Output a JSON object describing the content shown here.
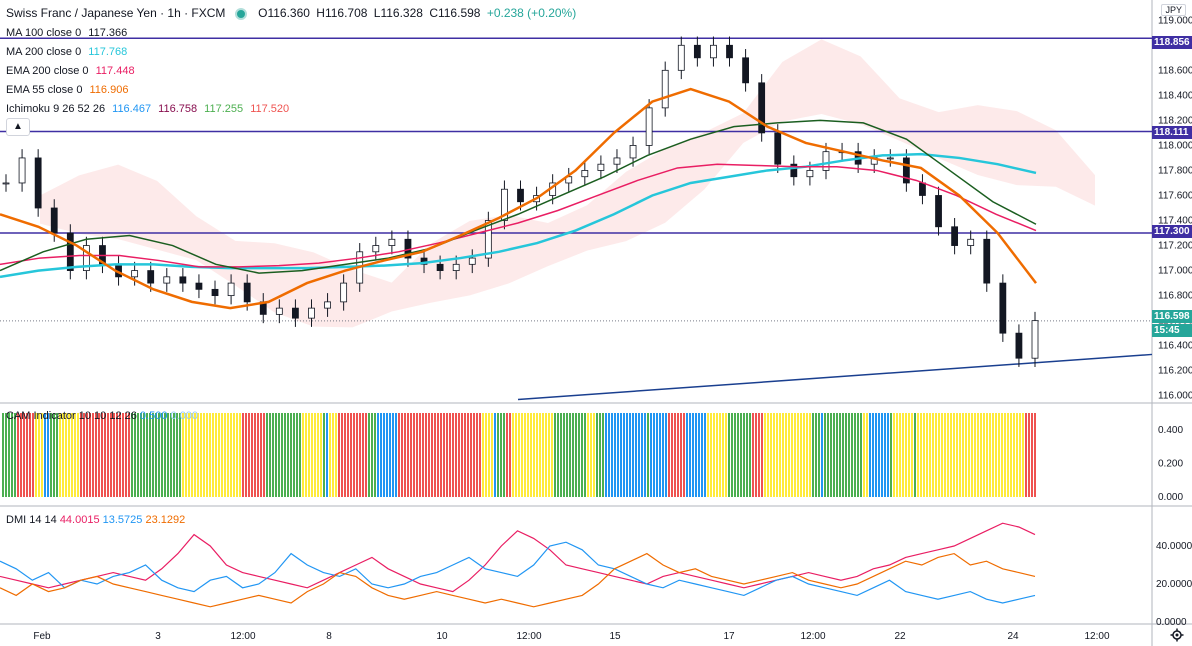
{
  "symbol": {
    "title": "Swiss Franc / Japanese Yen · 1h · FXCM",
    "ohlc": {
      "o": "O116.360",
      "h": "H116.708",
      "l": "L116.328",
      "c": "C116.598",
      "chg": "+0.238 (+0.20%)"
    }
  },
  "indicators": {
    "ma100": {
      "label": "MA 100 close 0",
      "value": "117.366",
      "color": "#131722"
    },
    "ma200": {
      "label": "MA 200 close 0",
      "value": "117.768",
      "color": "#26c6da"
    },
    "ema200": {
      "label": "EMA 200 close 0",
      "value": "117.448",
      "color": "#e91e63"
    },
    "ema55": {
      "label": "EMA 55 close 0",
      "value": "116.906",
      "color": "#ef6c00"
    },
    "ichimoku": {
      "label": "Ichimoku 9 26 52 26",
      "values": [
        "116.467",
        "116.758",
        "117.255",
        "117.520"
      ],
      "colors": [
        "#2196f3",
        "#880e4f",
        "#4caf50",
        "#ef5350"
      ]
    }
  },
  "currency_unit": "JPY",
  "price_tags": {
    "h1": "118.856",
    "h2": "118.111",
    "h3": "117.300",
    "last": "116.598",
    "countdown": "15:45"
  },
  "cam": {
    "label": "CAM Indicator 10 10 12 26",
    "v1": "0.500",
    "v2": "0.000"
  },
  "dmi": {
    "label": "DMI 14 14",
    "v1": "44.0015",
    "v2": "13.5725",
    "v3": "23.1292"
  },
  "chart_data": {
    "type": "line",
    "title": "Swiss Franc / Japanese Yen · 1h · FXCM",
    "price_axis": {
      "ticks": [
        "119.000",
        "118.800",
        "118.600",
        "118.400",
        "118.200",
        "118.000",
        "117.800",
        "117.600",
        "117.400",
        "117.200",
        "117.000",
        "116.800",
        "116.600",
        "116.400",
        "116.200",
        "116.000"
      ],
      "ylim": [
        115.95,
        119.05
      ]
    },
    "cam_axis": {
      "ticks": [
        "0.400",
        "0.200",
        "0.000"
      ]
    },
    "dmi_axis": {
      "ticks": [
        "40.0000",
        "20.0000",
        "0.0000"
      ]
    },
    "time_labels": [
      "Feb",
      "3",
      "12:00",
      "8",
      "10",
      "12:00",
      "15",
      "17",
      "12:00",
      "22",
      "24",
      "12:00"
    ],
    "horizontal_levels": [
      118.856,
      118.111,
      117.3
    ],
    "last_price": 116.598,
    "trendline": {
      "from": [
        -1,
        115.97
      ],
      "to": [
        1,
        116.33
      ]
    },
    "close_series": [
      117.7,
      117.9,
      117.5,
      117.3,
      117.0,
      117.2,
      117.05,
      116.95,
      117.0,
      116.9,
      116.95,
      116.9,
      116.85,
      116.8,
      116.9,
      116.75,
      116.65,
      116.7,
      116.62,
      116.7,
      116.75,
      116.9,
      117.15,
      117.2,
      117.25,
      117.1,
      117.05,
      117.0,
      117.05,
      117.1,
      117.4,
      117.65,
      117.55,
      117.6,
      117.7,
      117.75,
      117.8,
      117.85,
      117.9,
      118.0,
      118.3,
      118.6,
      118.8,
      118.7,
      118.8,
      118.7,
      118.5,
      118.1,
      117.85,
      117.75,
      117.8,
      117.95,
      117.95,
      117.85,
      117.9,
      117.9,
      117.7,
      117.6,
      117.35,
      117.2,
      117.25,
      116.9,
      116.5,
      116.3,
      116.6
    ],
    "ma200_series": [
      116.95,
      117.0,
      117.03,
      117.05,
      117.05,
      117.03,
      117.02,
      117.02,
      117.02,
      117.03,
      117.04,
      117.06,
      117.1,
      117.15,
      117.22,
      117.32,
      117.45,
      117.6,
      117.7,
      117.75,
      117.8,
      117.83,
      117.88,
      117.92,
      117.93,
      117.9,
      117.85,
      117.78
    ],
    "ema200_series": [
      117.05,
      117.1,
      117.12,
      117.12,
      117.08,
      117.03,
      117.03,
      117.04,
      117.06,
      117.1,
      117.15,
      117.22,
      117.3,
      117.38,
      117.48,
      117.6,
      117.72,
      117.82,
      117.85,
      117.84,
      117.83,
      117.83,
      117.8,
      117.72,
      117.6,
      117.45,
      117.32
    ],
    "ma100_series": [
      117.0,
      117.15,
      117.25,
      117.28,
      117.2,
      117.05,
      116.98,
      117.0,
      117.05,
      117.1,
      117.18,
      117.32,
      117.45,
      117.6,
      117.75,
      117.92,
      118.05,
      118.15,
      118.18,
      118.2,
      118.18,
      118.05,
      117.8,
      117.55,
      117.37
    ],
    "ema55_series": [
      117.45,
      117.35,
      117.2,
      117.0,
      116.85,
      116.75,
      116.7,
      116.75,
      116.9,
      117.0,
      117.08,
      117.15,
      117.28,
      117.42,
      117.58,
      117.8,
      118.1,
      118.35,
      118.45,
      118.35,
      118.15,
      118.02,
      117.95,
      117.88,
      117.82,
      117.6,
      117.3,
      116.9
    ],
    "dmi_series": {
      "plus": [
        32,
        28,
        22,
        26,
        18,
        22,
        20,
        24,
        26,
        30,
        22,
        18,
        16,
        22,
        24,
        18,
        20,
        26,
        36,
        30,
        26,
        24,
        28,
        20,
        18,
        20,
        24,
        26,
        30,
        34,
        28,
        26,
        24,
        30,
        40,
        42,
        38,
        30,
        28,
        24,
        20,
        18,
        22,
        20,
        18,
        16,
        14,
        18,
        22,
        24,
        20,
        18,
        16,
        14,
        18,
        22,
        16,
        14,
        12,
        14,
        16,
        12,
        10,
        12,
        14
      ],
      "minus": [
        18,
        14,
        20,
        16,
        18,
        22,
        24,
        20,
        18,
        16,
        14,
        12,
        10,
        8,
        10,
        12,
        14,
        12,
        10,
        16,
        20,
        26,
        24,
        18,
        14,
        12,
        14,
        16,
        14,
        12,
        10,
        12,
        10,
        8,
        10,
        12,
        14,
        20,
        28,
        32,
        36,
        30,
        26,
        28,
        24,
        22,
        20,
        22,
        24,
        26,
        22,
        20,
        18,
        20,
        24,
        28,
        32,
        30,
        34,
        36,
        30,
        32,
        28,
        26,
        24
      ],
      "adx": [
        24,
        22,
        20,
        18,
        20,
        22,
        24,
        26,
        24,
        22,
        28,
        36,
        46,
        40,
        30,
        26,
        24,
        22,
        20,
        18,
        22,
        26,
        30,
        34,
        28,
        24,
        20,
        18,
        16,
        22,
        30,
        40,
        48,
        44,
        38,
        30,
        28,
        26,
        24,
        22,
        20,
        24,
        26,
        24,
        22,
        20,
        18,
        20,
        22,
        24,
        26,
        24,
        22,
        24,
        28,
        30,
        34,
        36,
        38,
        40,
        44,
        48,
        52,
        50,
        46
      ]
    }
  }
}
